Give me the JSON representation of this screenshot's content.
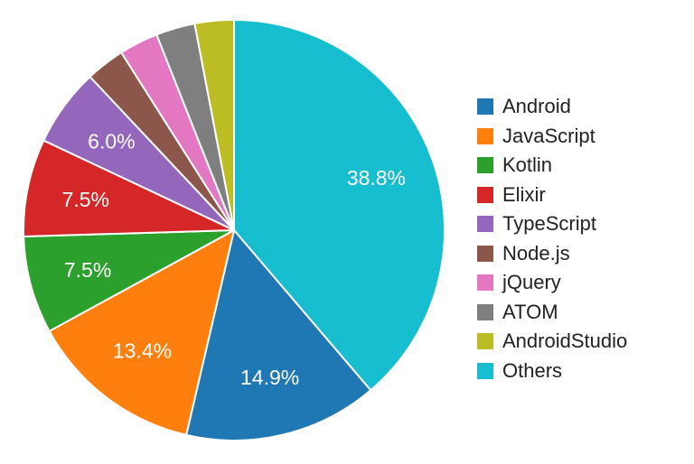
{
  "chart_data": {
    "type": "pie",
    "title": "",
    "slices": [
      {
        "name": "Android",
        "value": 14.9,
        "label": "14.9%",
        "color": "#1f77b4"
      },
      {
        "name": "JavaScript",
        "value": 13.4,
        "label": "13.4%",
        "color": "#ff7f0e"
      },
      {
        "name": "Kotlin",
        "value": 7.5,
        "label": "7.5%",
        "color": "#2ca02c"
      },
      {
        "name": "Elixir",
        "value": 7.5,
        "label": "7.5%",
        "color": "#d62728"
      },
      {
        "name": "TypeScript",
        "value": 6.0,
        "label": "6.0%",
        "color": "#9467bd"
      },
      {
        "name": "Node.js",
        "value": 3.0,
        "label": "",
        "color": "#8c564b"
      },
      {
        "name": "jQuery",
        "value": 3.0,
        "label": "",
        "color": "#e377c2"
      },
      {
        "name": "ATOM",
        "value": 3.0,
        "label": "",
        "color": "#7f7f7f"
      },
      {
        "name": "AndroidStudio",
        "value": 3.0,
        "label": "",
        "color": "#bcbd22"
      },
      {
        "name": "Others",
        "value": 38.8,
        "label": "38.8%",
        "color": "#17becf"
      }
    ],
    "start_angle": "12 o'clock",
    "direction": "clockwise, starting with Others",
    "legend_position": "right"
  }
}
